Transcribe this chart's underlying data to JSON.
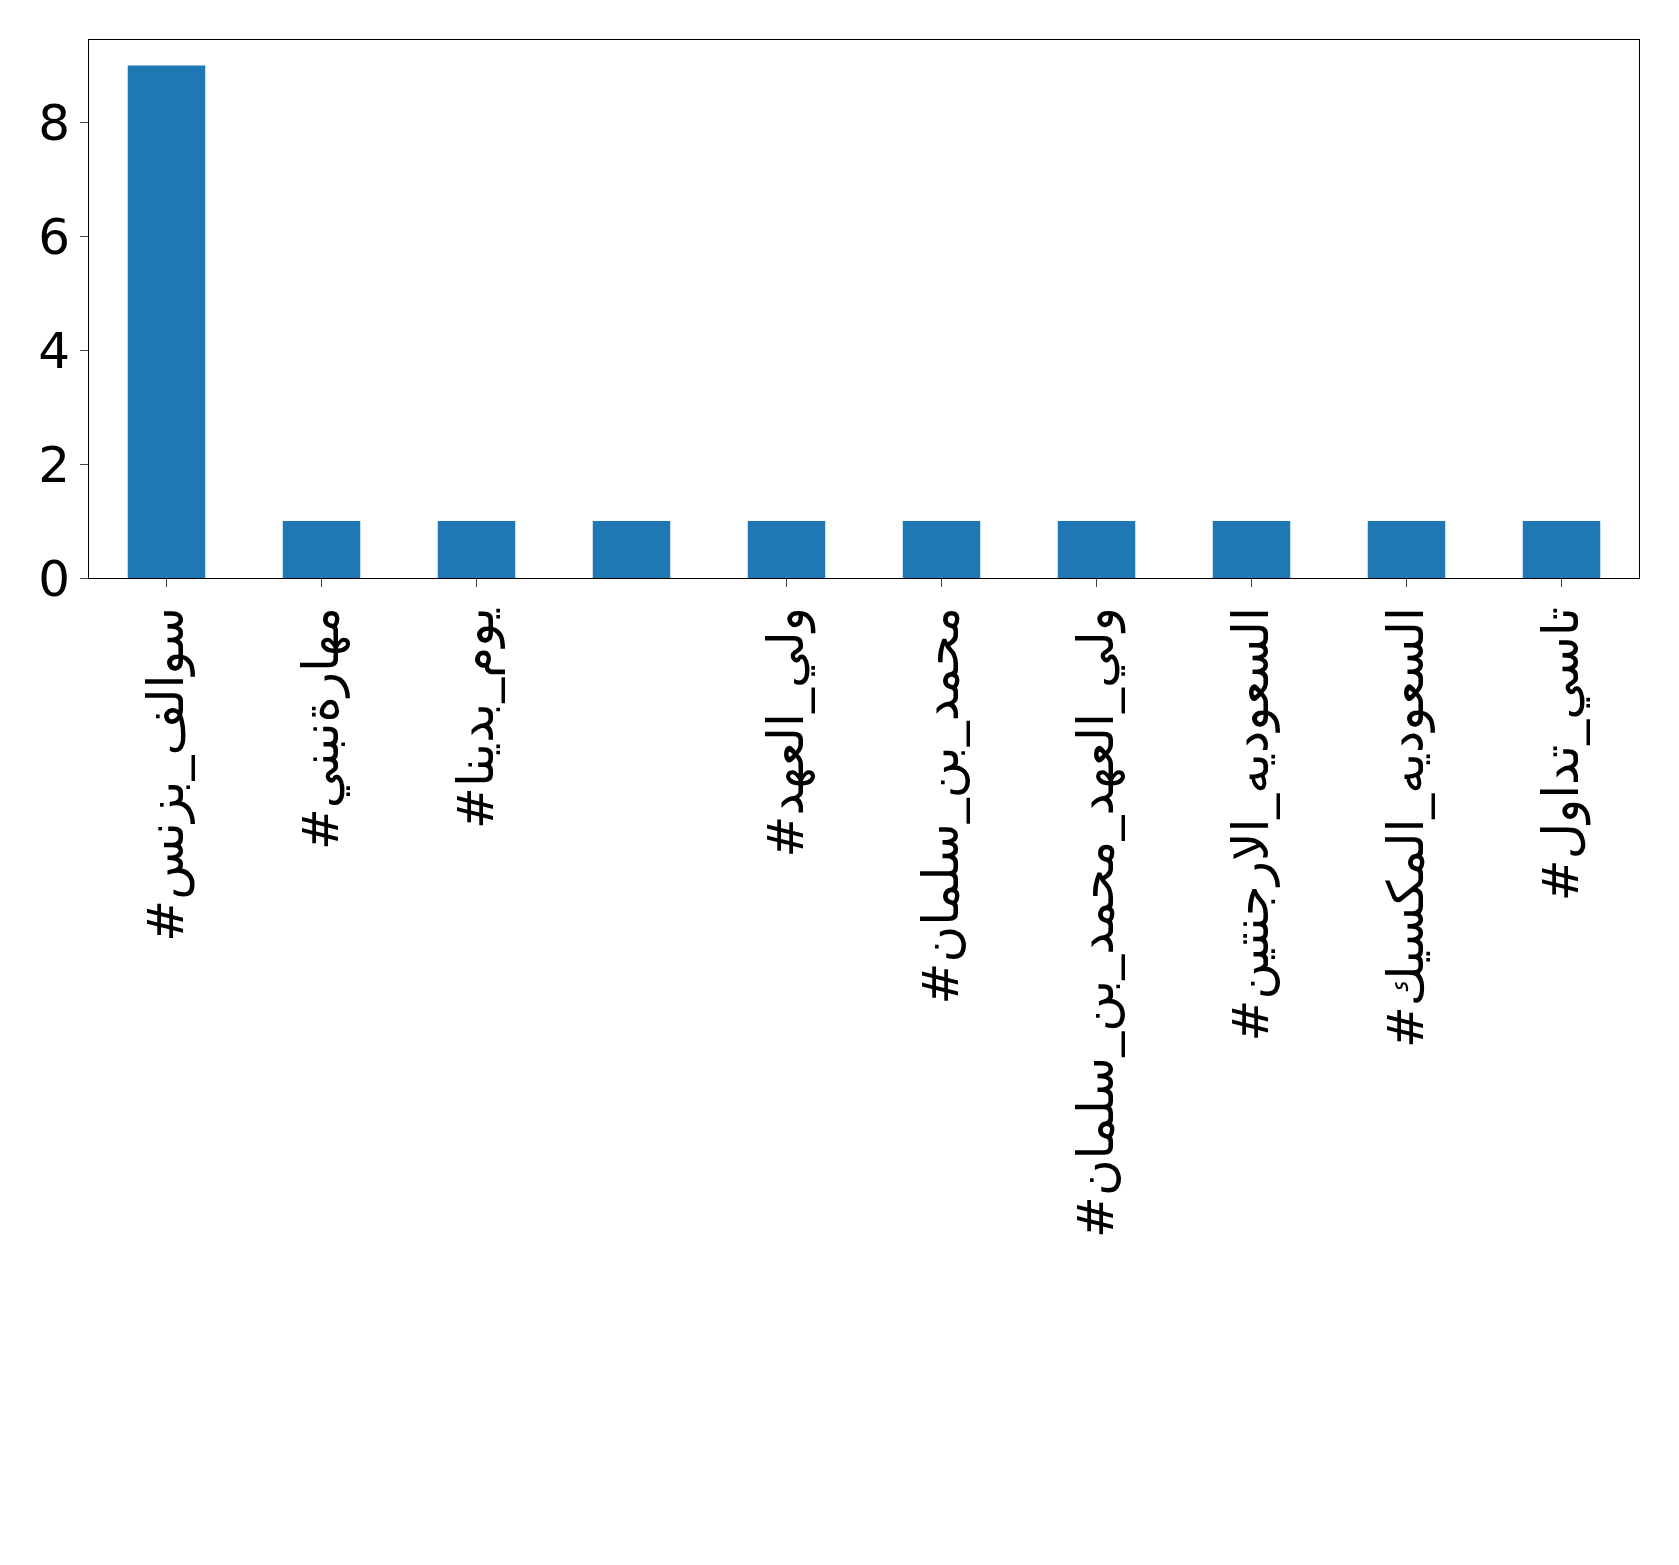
{
  "chart_data": {
    "type": "bar",
    "categories": [
      "#سوالف_بزنس",
      "#مهارةنبني",
      "#يوم_بدينا",
      null,
      "#ولي_العهد",
      "#محمد_بن_سلمان",
      "#ولي_العهد_محمد_بن_سلمان",
      "#السعوديه_الارجنتين",
      "#السعوديه_المكسيك",
      "#تاسي_تداول"
    ],
    "values": [
      9,
      1,
      1,
      1,
      1,
      1,
      1,
      1,
      1,
      1
    ],
    "color": "#1f77b4",
    "ylim": [
      0,
      9.45
    ],
    "yticks": [
      0,
      2,
      4,
      6,
      8
    ],
    "grid": false
  }
}
